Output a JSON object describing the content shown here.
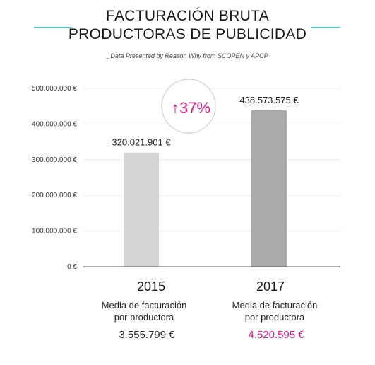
{
  "title_line1": "FACTURACIÓN BRUTA",
  "title_line2": "PRODUCTORAS DE PUBLICIDAD",
  "subtitle": "_Data Presented by Reason Why from SCOPEN y APCP",
  "colors": {
    "accent": "#3dd0d8",
    "highlight": "#e5118a",
    "bar_2015": "#d4d4d4",
    "bar_2017": "#aaaaaa"
  },
  "growth_badge": {
    "arrow": "↑",
    "text": "37%"
  },
  "chart_data": {
    "type": "bar",
    "categories": [
      "2015",
      "2017"
    ],
    "values": [
      320021901,
      438573575
    ],
    "value_labels": [
      "320.021.901 €",
      "438.573.575 €"
    ],
    "ylim": [
      0,
      500000000
    ],
    "yticks": [
      0,
      100000000,
      200000000,
      300000000,
      400000000,
      500000000
    ],
    "ytick_labels": [
      "0 €",
      "100.000.000 €",
      "200.000.000 €",
      "300.000.000 €",
      "400.000.000 €",
      "500.000.000 €"
    ],
    "grid": true
  },
  "summary": [
    {
      "year": "2015",
      "label_line1": "Media de facturación",
      "label_line2": "por productora",
      "value": "3.555.799 €"
    },
    {
      "year": "2017",
      "label_line1": "Media de facturación",
      "label_line2": "por productora",
      "value": "4.520.595 €"
    }
  ]
}
